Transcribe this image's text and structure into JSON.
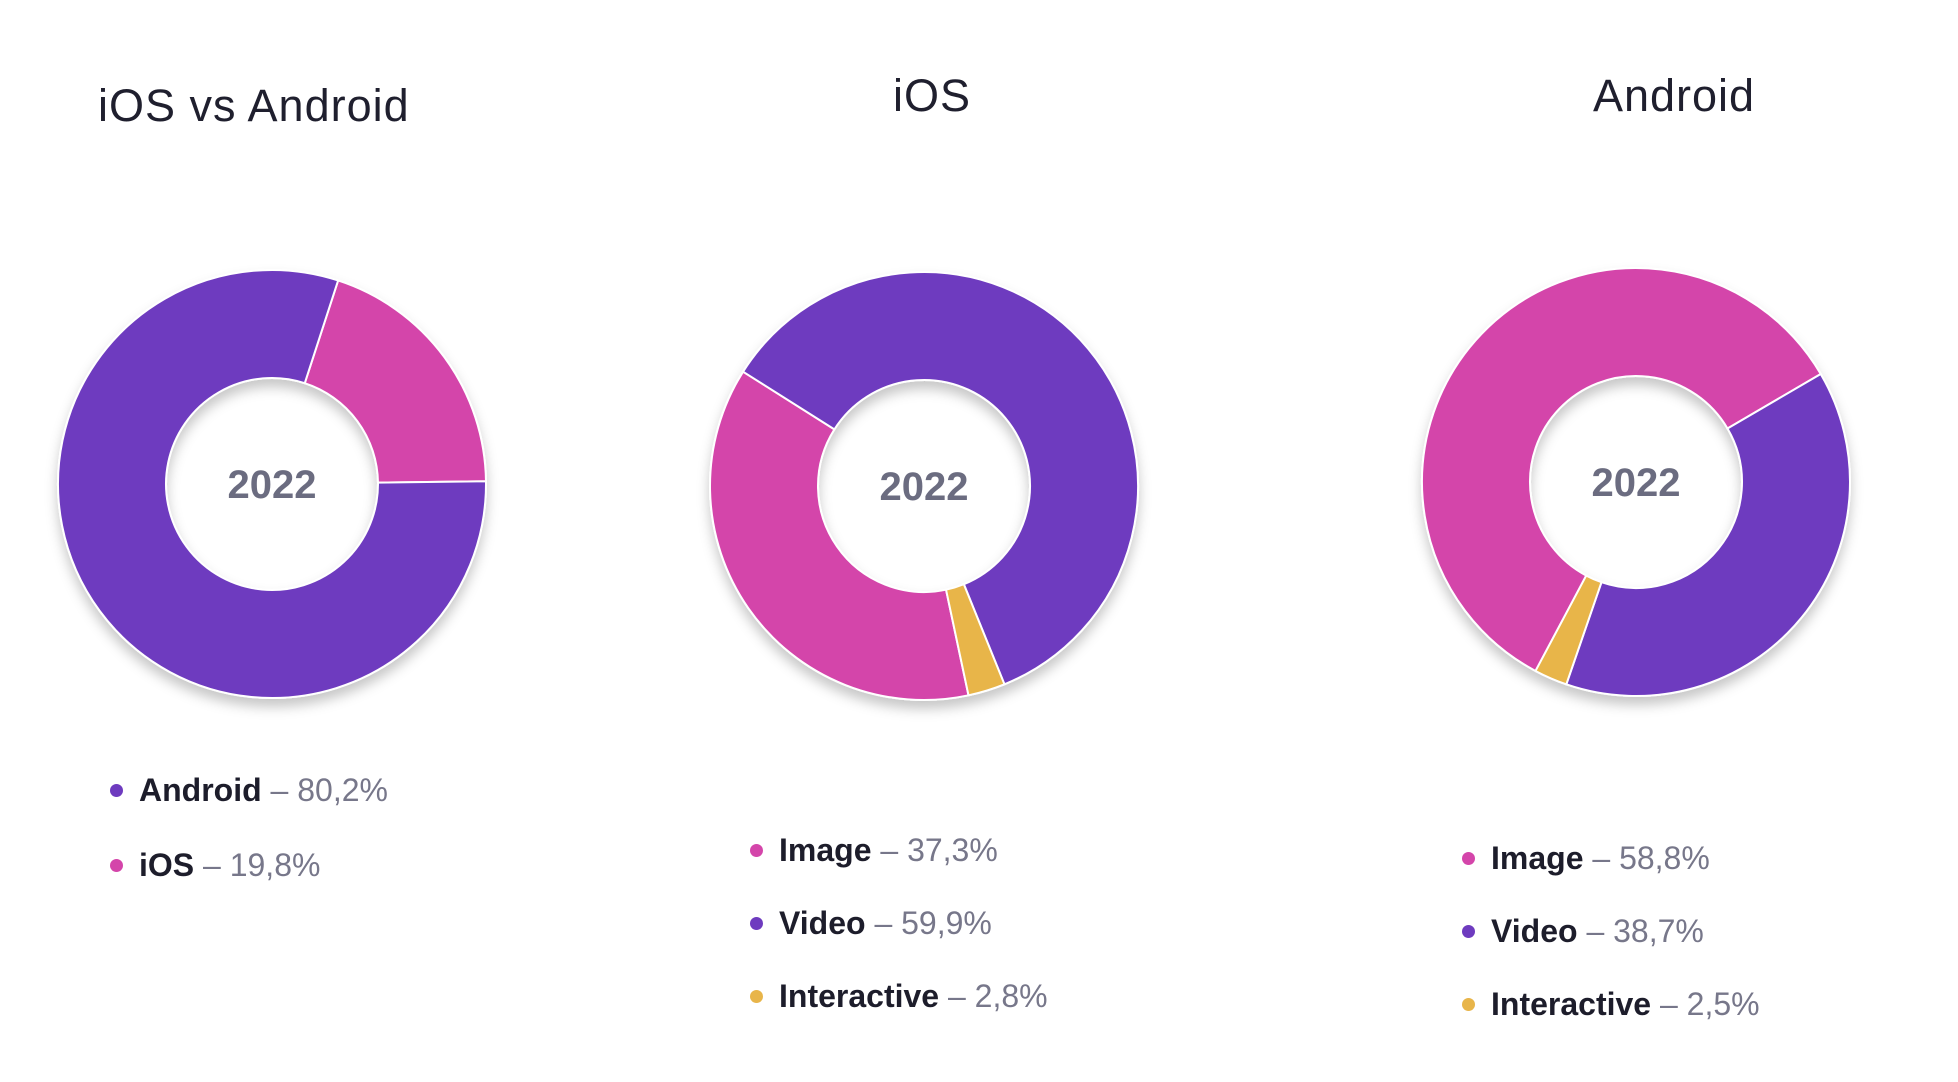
{
  "colors": {
    "android": "#6e3bbf",
    "ios": "#d445aa",
    "image": "#d445aa",
    "video": "#6e3bbf",
    "interactive": "#e8b54a"
  },
  "chart_data": [
    {
      "type": "pie",
      "title": "iOS vs Android",
      "center_label": "2022",
      "slices": [
        {
          "label": "Android",
          "value": 80.2,
          "display": "80,2%",
          "color_key": "android"
        },
        {
          "label": "iOS",
          "value": 19.8,
          "display": "19,8%",
          "color_key": "ios"
        }
      ]
    },
    {
      "type": "pie",
      "title": "iOS",
      "center_label": "2022",
      "slices": [
        {
          "label": "Image",
          "value": 37.3,
          "display": "37,3%",
          "color_key": "image"
        },
        {
          "label": "Video",
          "value": 59.9,
          "display": "59,9%",
          "color_key": "video"
        },
        {
          "label": "Interactive",
          "value": 2.8,
          "display": "2,8%",
          "color_key": "interactive"
        }
      ]
    },
    {
      "type": "pie",
      "title": "Android",
      "center_label": "2022",
      "slices": [
        {
          "label": "Image",
          "value": 58.8,
          "display": "58,8%",
          "color_key": "image"
        },
        {
          "label": "Video",
          "value": 38.7,
          "display": "38,7%",
          "color_key": "video"
        },
        {
          "label": "Interactive",
          "value": 2.5,
          "display": "2,5%",
          "color_key": "interactive"
        }
      ]
    }
  ]
}
